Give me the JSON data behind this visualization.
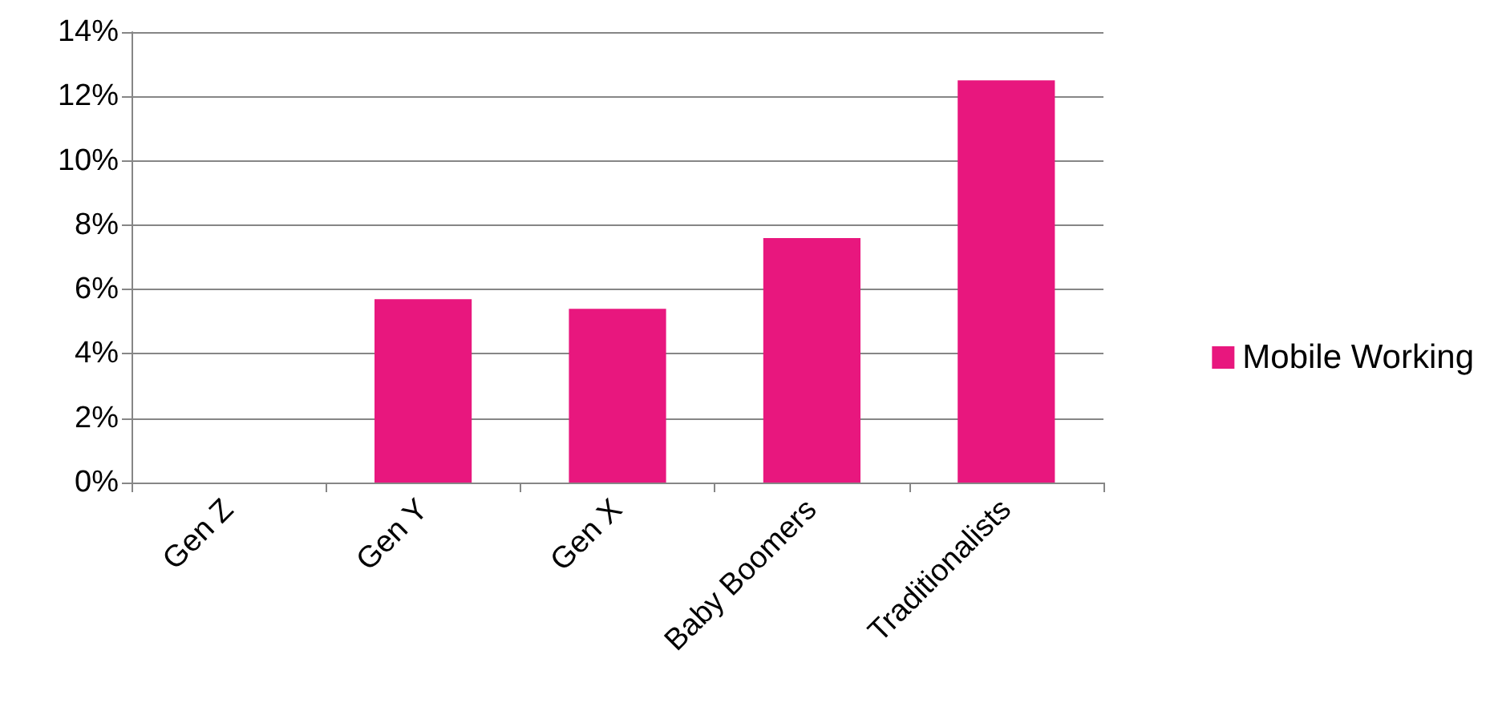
{
  "chart_data": {
    "type": "bar",
    "categories": [
      "Gen Z",
      "Gen Y",
      "Gen X",
      "Baby Boomers",
      "Traditionalists"
    ],
    "series": [
      {
        "name": "Mobile Working",
        "color": "#e8177e",
        "values": [
          0,
          5.7,
          5.4,
          7.6,
          12.5
        ]
      }
    ],
    "ylim": [
      0,
      14
    ],
    "yticks": [
      {
        "value": 0,
        "label": "0%"
      },
      {
        "value": 2,
        "label": "2%"
      },
      {
        "value": 4,
        "label": "4%"
      },
      {
        "value": 6,
        "label": "6%"
      },
      {
        "value": 8,
        "label": "8%"
      },
      {
        "value": 10,
        "label": "10%"
      },
      {
        "value": 12,
        "label": "12%"
      },
      {
        "value": 14,
        "label": "14%"
      }
    ],
    "grid": "y",
    "legend": "right"
  }
}
